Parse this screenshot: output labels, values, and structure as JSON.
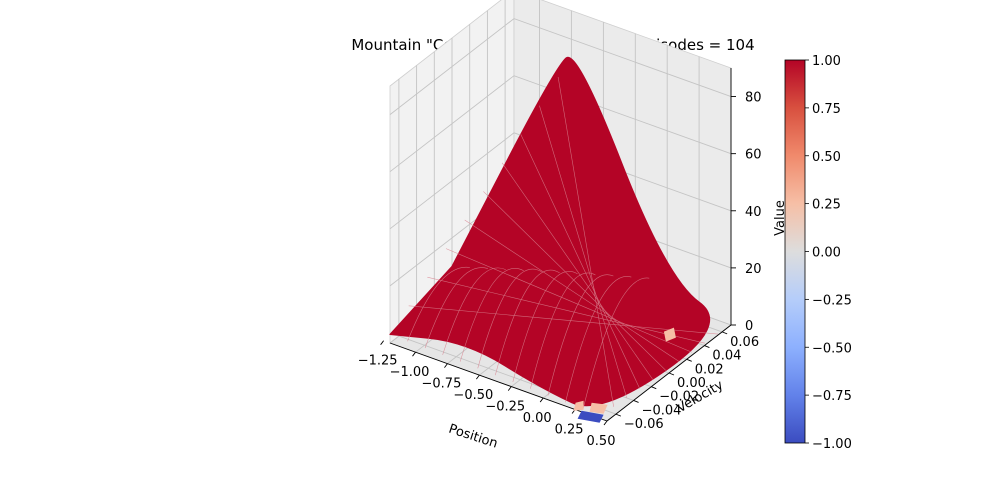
{
  "chart_data": {
    "type": "surface",
    "title": "Mountain \"Cost To Go\" Function, Total Episodes = 104",
    "xlabel": "Position",
    "ylabel": "Velocity",
    "zlabel": "",
    "colorbar_label": "Value",
    "x_ticks": [
      "−1.25",
      "−1.00",
      "−0.75",
      "−0.50",
      "−0.25",
      "0.00",
      "0.25",
      "0.50"
    ],
    "x_tick_values": [
      -1.25,
      -1.0,
      -0.75,
      -0.5,
      -0.25,
      0.0,
      0.25,
      0.5
    ],
    "y_ticks": [
      "−0.06",
      "−0.04",
      "−0.02",
      "0.00",
      "0.02",
      "0.04",
      "0.06"
    ],
    "y_tick_values": [
      -0.06,
      -0.04,
      -0.02,
      0.0,
      0.02,
      0.04,
      0.06
    ],
    "z_ticks": [
      "0",
      "20",
      "40",
      "60",
      "80"
    ],
    "z_tick_values": [
      0,
      20,
      40,
      60,
      80
    ],
    "colorbar_ticks": [
      "1.00",
      "0.75",
      "0.50",
      "0.25",
      "0.00",
      "−0.25",
      "−0.50",
      "−0.75",
      "−1.00"
    ],
    "colorbar_tick_values": [
      1.0,
      0.75,
      0.5,
      0.25,
      0.0,
      -0.25,
      -0.5,
      -0.75,
      -1.0
    ],
    "xlim": [
      -1.2,
      0.5
    ],
    "ylim": [
      -0.07,
      0.07
    ],
    "zlim": [
      0,
      90
    ],
    "clim": [
      -1,
      1
    ],
    "colormap": "coolwarm",
    "colors": {
      "surface": "#b40426",
      "surface_edge": "#d9828f",
      "cold": "#3b4cc0",
      "pale": "#f6bfa6",
      "mid": "#dddddd"
    },
    "grid": true,
    "peak_value": 88,
    "surface_outline": [
      [
        -1.2,
        -0.07,
        3
      ],
      [
        -0.6,
        -0.07,
        10
      ],
      [
        0.0,
        -0.07,
        3
      ],
      [
        0.45,
        -0.07,
        1
      ],
      [
        0.5,
        0.07,
        0
      ],
      [
        0.0,
        0.07,
        8
      ],
      [
        -0.5,
        0.04,
        88
      ],
      [
        -0.6,
        0.03,
        82
      ],
      [
        -1.2,
        0.0,
        10
      ]
    ]
  }
}
